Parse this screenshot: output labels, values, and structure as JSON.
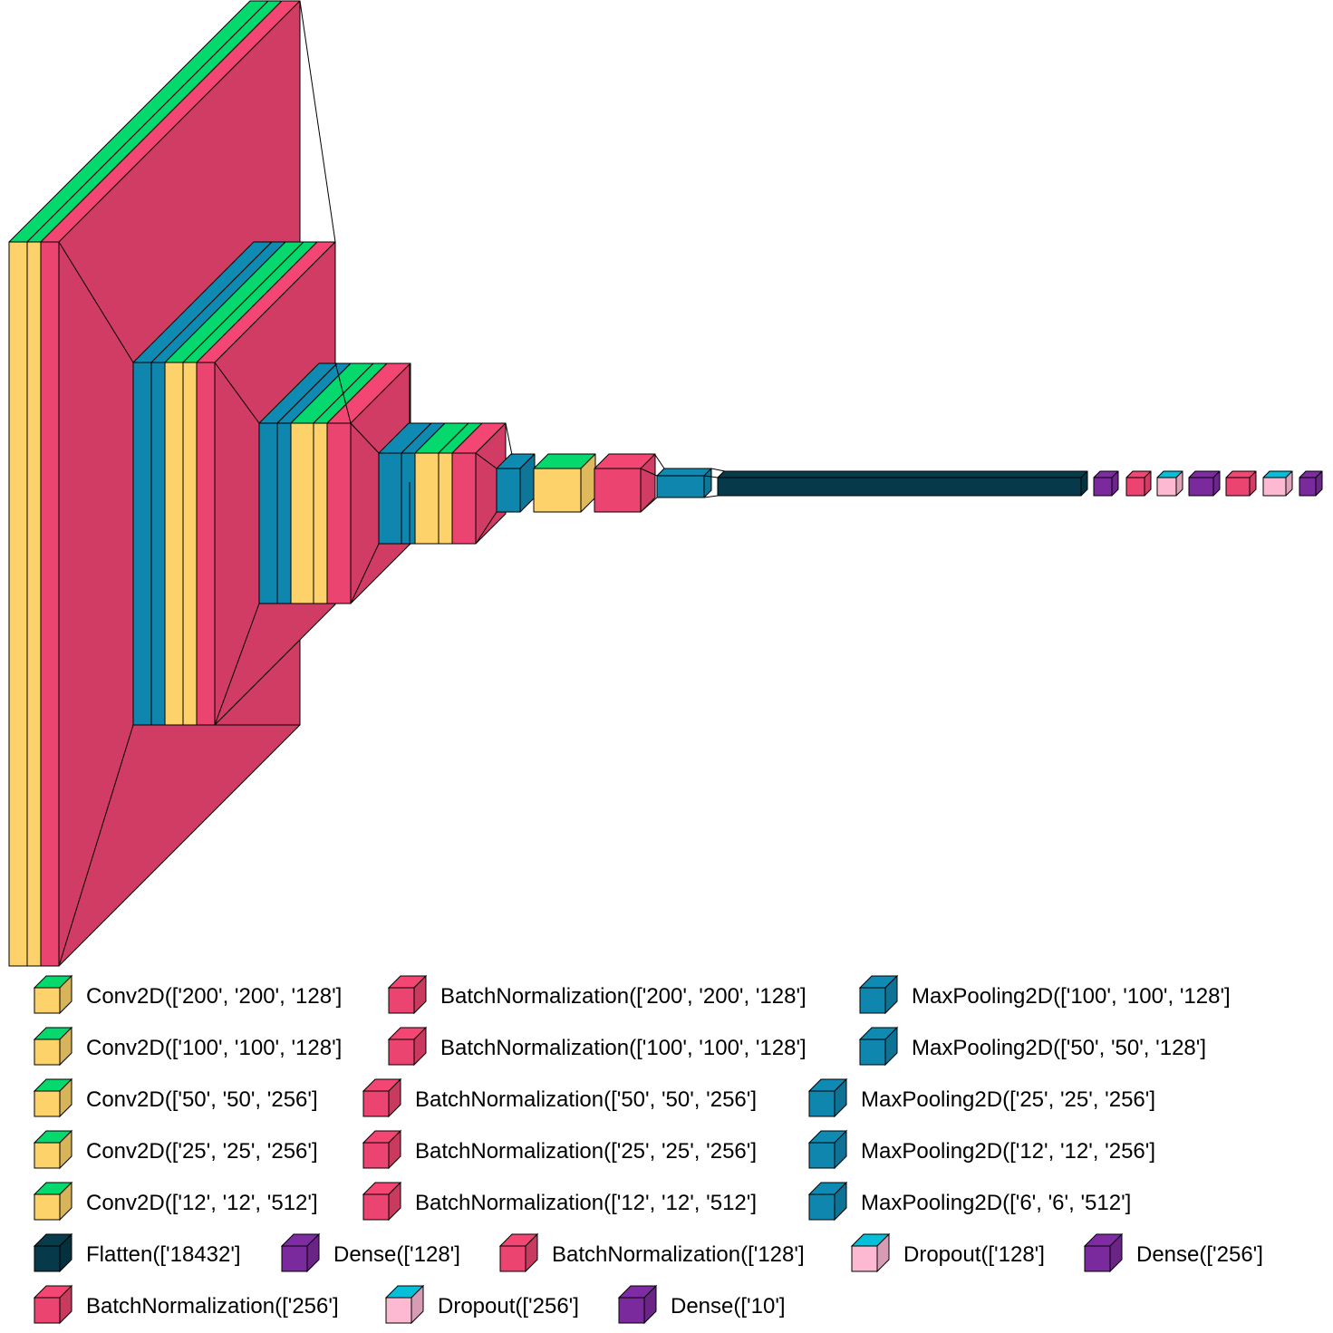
{
  "colors": {
    "conv": "#FDD26A",
    "batchnorm": "#EC4470",
    "maxpool": "#0F86AE",
    "flatten": "#063A4A",
    "dense": "#7B2A9E",
    "dropout": "#FDB8D2",
    "outline": "#000000"
  },
  "legend_rows": [
    [
      {
        "type": "conv",
        "label": "Conv2D(['200', '200', '128']"
      },
      {
        "type": "batchnorm",
        "label": "BatchNormalization(['200', '200', '128']"
      },
      {
        "type": "maxpool",
        "label": "MaxPooling2D(['100', '100', '128']"
      }
    ],
    [
      {
        "type": "conv",
        "label": "Conv2D(['100', '100', '128']"
      },
      {
        "type": "batchnorm",
        "label": "BatchNormalization(['100', '100', '128']"
      },
      {
        "type": "maxpool",
        "label": "MaxPooling2D(['50', '50', '128']"
      }
    ],
    [
      {
        "type": "conv",
        "label": "Conv2D(['50', '50', '256']"
      },
      {
        "type": "batchnorm",
        "label": "BatchNormalization(['50', '50', '256']"
      },
      {
        "type": "maxpool",
        "label": "MaxPooling2D(['25', '25', '256']"
      }
    ],
    [
      {
        "type": "conv",
        "label": "Conv2D(['25', '25', '256']"
      },
      {
        "type": "batchnorm",
        "label": "BatchNormalization(['25', '25', '256']"
      },
      {
        "type": "maxpool",
        "label": "MaxPooling2D(['12', '12', '256']"
      }
    ],
    [
      {
        "type": "conv",
        "label": "Conv2D(['12', '12', '512']"
      },
      {
        "type": "batchnorm",
        "label": "BatchNormalization(['12', '12', '512']"
      },
      {
        "type": "maxpool",
        "label": "MaxPooling2D(['6', '6', '512']"
      }
    ],
    [
      {
        "type": "flatten",
        "label": "Flatten(['18432']"
      },
      {
        "type": "dense",
        "label": "Dense(['128']"
      },
      {
        "type": "batchnorm",
        "label": "BatchNormalization(['128']"
      },
      {
        "type": "dropout",
        "label": "Dropout(['128']"
      },
      {
        "type": "dense",
        "label": "Dense(['256']"
      }
    ],
    [
      {
        "type": "batchnorm",
        "label": "BatchNormalization(['256']"
      },
      {
        "type": "dropout",
        "label": "Dropout(['256']"
      },
      {
        "type": "dense",
        "label": "Dense(['10']"
      }
    ]
  ]
}
